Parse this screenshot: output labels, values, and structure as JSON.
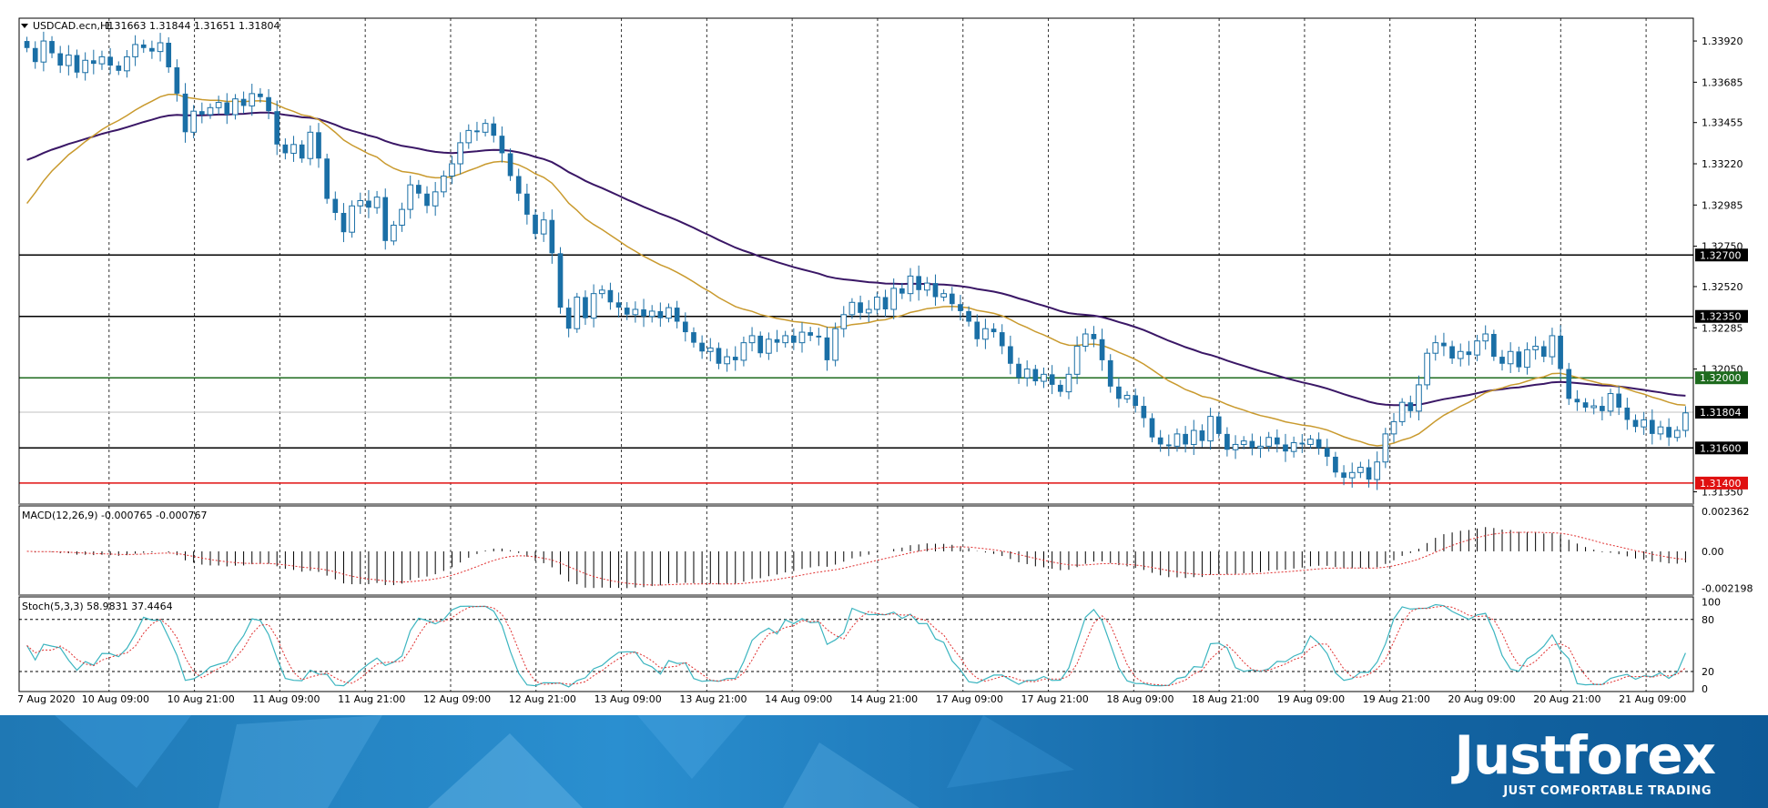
{
  "chart_data": {
    "type": "candlestick",
    "title": "USDCAD.ecn,H1",
    "ohlc": {
      "open": "1.31663",
      "high": "1.31844",
      "low": "1.31651",
      "close": "1.31804"
    },
    "price_ticks": [
      "1.33920",
      "1.33685",
      "1.33455",
      "1.33220",
      "1.32985",
      "1.32750",
      "1.32520",
      "1.32285",
      "1.32050",
      "1.31350"
    ],
    "ylim": [
      1.3128,
      1.3405
    ],
    "current_price": {
      "label": "1.31804",
      "value": 1.31804
    },
    "levels": [
      {
        "label": "1.32700",
        "value": 1.327,
        "color": "#000000"
      },
      {
        "label": "1.32350",
        "value": 1.3235,
        "color": "#000000"
      },
      {
        "label": "1.32000",
        "value": 1.32,
        "color": "#1e6b1e"
      },
      {
        "label": "1.31600",
        "value": 1.316,
        "color": "#000000"
      },
      {
        "label": "1.31400",
        "value": 1.314,
        "color": "#e01010"
      }
    ],
    "x_labels": [
      "7 Aug 2020",
      "10 Aug 09:00",
      "10 Aug 21:00",
      "11 Aug 09:00",
      "11 Aug 21:00",
      "12 Aug 09:00",
      "12 Aug 21:00",
      "13 Aug 09:00",
      "13 Aug 21:00",
      "14 Aug 09:00",
      "14 Aug 21:00",
      "17 Aug 09:00",
      "17 Aug 21:00",
      "18 Aug 09:00",
      "18 Aug 21:00",
      "19 Aug 09:00",
      "19 Aug 21:00",
      "20 Aug 09:00",
      "20 Aug 21:00",
      "21 Aug 09:00"
    ],
    "closes": [
      1.3388,
      1.338,
      1.3392,
      1.3385,
      1.3378,
      1.3384,
      1.3374,
      1.3381,
      1.3379,
      1.3383,
      1.3378,
      1.3375,
      1.3383,
      1.339,
      1.3388,
      1.3386,
      1.3391,
      1.3377,
      1.3362,
      1.334,
      1.3352,
      1.335,
      1.3354,
      1.3357,
      1.335,
      1.3359,
      1.3355,
      1.3362,
      1.336,
      1.3352,
      1.3333,
      1.3328,
      1.3333,
      1.3325,
      1.334,
      1.3325,
      1.3302,
      1.3294,
      1.3283,
      1.3298,
      1.3301,
      1.3297,
      1.3303,
      1.3278,
      1.3287,
      1.3296,
      1.331,
      1.3305,
      1.3298,
      1.3306,
      1.3315,
      1.3322,
      1.3334,
      1.3341,
      1.334,
      1.3345,
      1.3338,
      1.3328,
      1.3315,
      1.3305,
      1.3293,
      1.3282,
      1.329,
      1.3271,
      1.324,
      1.3228,
      1.3246,
      1.3234,
      1.3248,
      1.325,
      1.3243,
      1.324,
      1.3236,
      1.3239,
      1.3235,
      1.3238,
      1.3234,
      1.324,
      1.3232,
      1.3226,
      1.322,
      1.3215,
      1.3217,
      1.3208,
      1.3212,
      1.321,
      1.322,
      1.3224,
      1.3214,
      1.3222,
      1.322,
      1.3224,
      1.322,
      1.3226,
      1.3224,
      1.3223,
      1.321,
      1.3228,
      1.3236,
      1.3243,
      1.3237,
      1.3239,
      1.3246,
      1.3239,
      1.3251,
      1.3248,
      1.3258,
      1.325,
      1.3254,
      1.3246,
      1.3248,
      1.3242,
      1.3238,
      1.3232,
      1.3222,
      1.3228,
      1.3226,
      1.3218,
      1.3208,
      1.32,
      1.3205,
      1.3198,
      1.3202,
      1.3196,
      1.3192,
      1.3202,
      1.3218,
      1.3225,
      1.3222,
      1.321,
      1.3195,
      1.3188,
      1.319,
      1.3184,
      1.3177,
      1.3166,
      1.3162,
      1.3161,
      1.3168,
      1.3162,
      1.317,
      1.3164,
      1.3178,
      1.3168,
      1.3159,
      1.3162,
      1.3164,
      1.316,
      1.3161,
      1.3166,
      1.3162,
      1.3158,
      1.3163,
      1.3162,
      1.3165,
      1.316,
      1.3155,
      1.3146,
      1.3143,
      1.3146,
      1.3149,
      1.3142,
      1.3152,
      1.3168,
      1.3175,
      1.3186,
      1.3181,
      1.3196,
      1.3214,
      1.322,
      1.3218,
      1.3211,
      1.3215,
      1.3213,
      1.3221,
      1.3225,
      1.3212,
      1.3208,
      1.3215,
      1.3206,
      1.3216,
      1.3218,
      1.3212,
      1.3224,
      1.3205,
      1.3188,
      1.3186,
      1.3183,
      1.3184,
      1.3181,
      1.3191,
      1.3183,
      1.3176,
      1.3172,
      1.3176,
      1.3168,
      1.3172,
      1.3166,
      1.317,
      1.318
    ],
    "ma_slow_start": 1.3322,
    "ma_fast_start": 1.3292,
    "indicators": {
      "macd": {
        "label": "MACD(12,26,9) -0.000765 -0.000767",
        "ticks": [
          "0.002362",
          "0.00",
          "-0.002198"
        ],
        "ylim": [
          -0.0026,
          0.0027
        ]
      },
      "stoch": {
        "label": "Stoch(5,3,3) 58.9831 37.4464",
        "ticks": [
          "100",
          "80",
          "20",
          "0"
        ],
        "ylim": [
          -3,
          106
        ]
      }
    },
    "colors": {
      "bull": "#1a6fa6",
      "bear": "#1a6fa6",
      "ma_slow": "#3a1766",
      "ma_fast": "#c99a2e",
      "stoch_main": "#3cb5c0",
      "stoch_signal": "#e03030",
      "macd_hist": "#000000",
      "macd_signal": "#e03030"
    }
  },
  "branding": {
    "logo": "Justforex",
    "tagline": "JUST COMFORTABLE TRADING"
  }
}
